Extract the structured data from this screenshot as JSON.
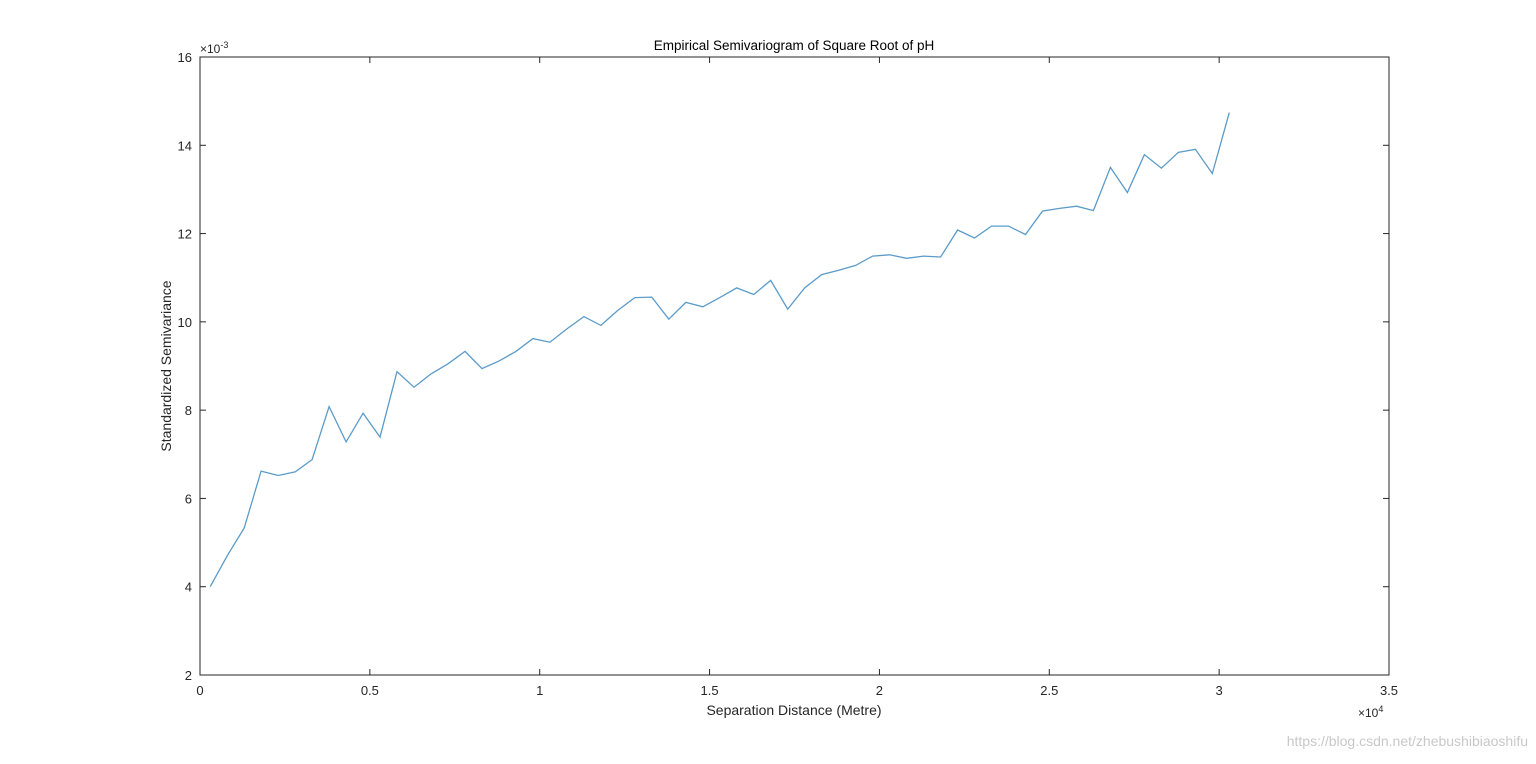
{
  "chart_data": {
    "type": "line",
    "title": "Empirical Semivariogram of Square Root of pH",
    "xlabel": "Separation Distance (Metre)",
    "ylabel": "Standardized Semivariance",
    "xlim": [
      0,
      35000
    ],
    "ylim": [
      0.002,
      0.016
    ],
    "x_tick_labels": [
      "0",
      "0.5",
      "1",
      "1.5",
      "2",
      "2.5",
      "3",
      "3.5"
    ],
    "y_tick_labels": [
      "2",
      "4",
      "6",
      "8",
      "10",
      "12",
      "14",
      "16"
    ],
    "x_exponent": {
      "base": "×10",
      "power": "4"
    },
    "y_exponent": {
      "base": "×10",
      "power": "-3"
    },
    "grid": false,
    "series": [
      {
        "color": "#5b9bc8",
        "x": [
          300,
          800,
          1300,
          1800,
          2300,
          2800,
          3300,
          3800,
          4300,
          4800,
          5300,
          5800,
          6300,
          6800,
          7300,
          7800,
          8300,
          8800,
          9300,
          9800,
          10300,
          10800,
          11300,
          11800,
          12300,
          12800,
          13300,
          13800,
          14300,
          14800,
          15300,
          15800,
          16300,
          16800,
          17300,
          17800,
          18300,
          18800,
          19300,
          19800,
          20300,
          20800,
          21300,
          21800,
          22300,
          22800,
          23300,
          23800,
          24300,
          24800,
          25300,
          25800,
          26300,
          26800,
          27300,
          27800,
          28300,
          28800,
          29300,
          29800,
          30300
        ],
        "y": [
          0.004,
          0.0047,
          0.00533,
          0.00662,
          0.00652,
          0.0066,
          0.00688,
          0.00808,
          0.00728,
          0.00793,
          0.00739,
          0.00887,
          0.00852,
          0.00882,
          0.00905,
          0.00933,
          0.00894,
          0.00911,
          0.00933,
          0.00962,
          0.00954,
          0.00984,
          0.01012,
          0.00992,
          0.01026,
          0.01055,
          0.01056,
          0.01006,
          0.01044,
          0.01034,
          0.01055,
          0.01077,
          0.01062,
          0.01094,
          0.01029,
          0.01077,
          0.01107,
          0.01117,
          0.01128,
          0.01149,
          0.01152,
          0.01144,
          0.01149,
          0.01147,
          0.01208,
          0.0119,
          0.01217,
          0.01217,
          0.01198,
          0.01251,
          0.01257,
          0.01262,
          0.01252,
          0.0135,
          0.01293,
          0.01379,
          0.01348,
          0.01384,
          0.01391,
          0.01336,
          0.01474
        ]
      }
    ]
  },
  "watermark": "https://blog.csdn.net/zhebushibiaoshifu"
}
